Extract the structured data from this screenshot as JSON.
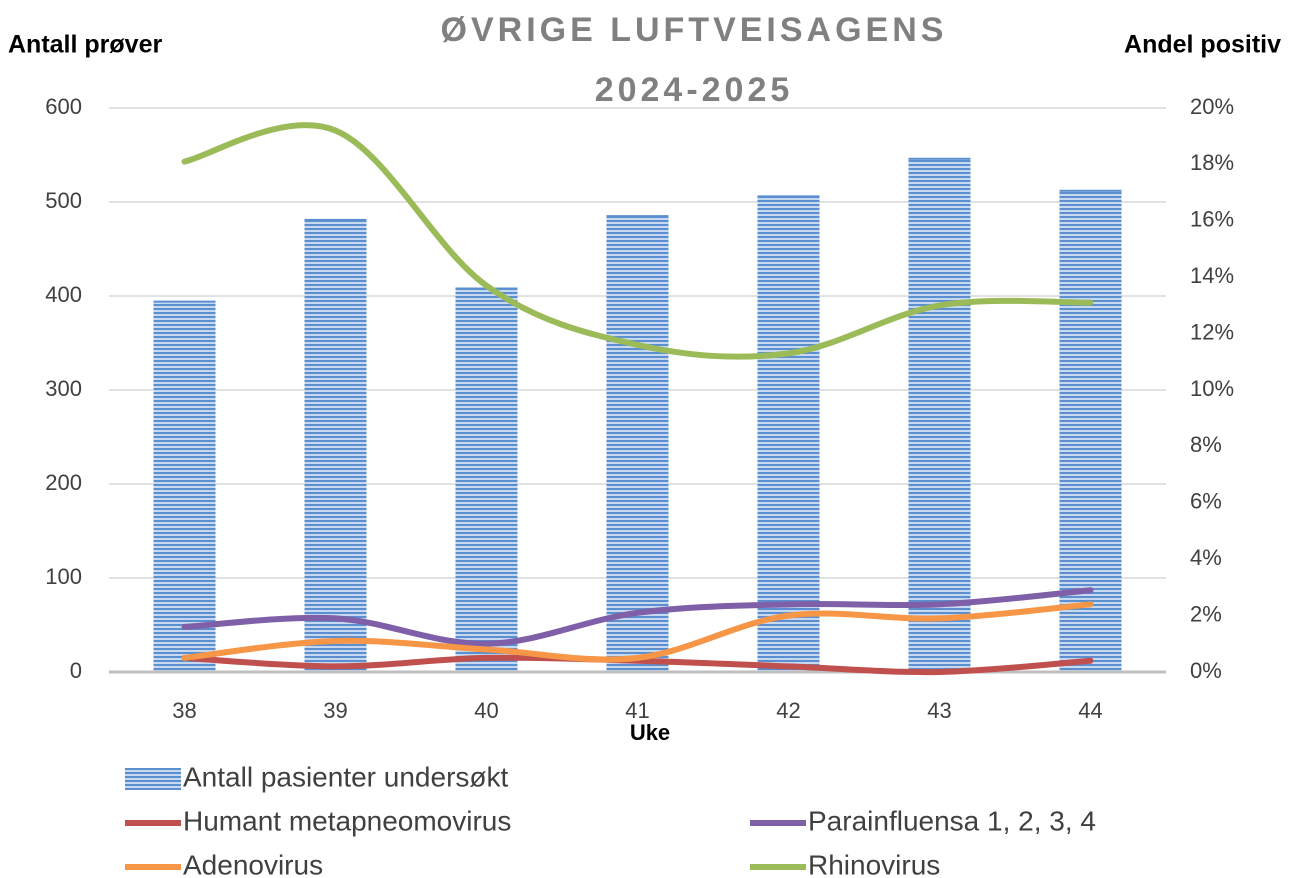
{
  "chart_data": {
    "type": "bar",
    "title": [
      "ØVRIGE LUFTVEISAGENS",
      "2024-2025"
    ],
    "y_label": "Antall prøver",
    "y2_label": "Andel positiv",
    "x_label": "Uke",
    "categories": [
      "38",
      "39",
      "40",
      "41",
      "42",
      "43",
      "44"
    ],
    "series": [
      {
        "name": "Antall pasienter undersøkt",
        "type": "bar",
        "axis": "y",
        "color": "#5b8fd0",
        "values": [
          394,
          481,
          408,
          485,
          506,
          546,
          512
        ]
      },
      {
        "name": "Parainfluensa 1, 2, 3, 4",
        "type": "line",
        "axis": "y2",
        "color": "#7f5fa8",
        "values": [
          1.6,
          1.9,
          1.0,
          2.1,
          2.4,
          2.4,
          2.9
        ]
      },
      {
        "name": "Humant metapneomovirus",
        "type": "line",
        "axis": "y2",
        "color": "#c0504d",
        "values": [
          0.5,
          0.2,
          0.5,
          0.4,
          0.2,
          0.0,
          0.4
        ]
      },
      {
        "name": "Rhinovirus",
        "type": "line",
        "axis": "y2",
        "color": "#9bbb59",
        "values": [
          18.1,
          19.2,
          13.7,
          11.6,
          11.3,
          13.0,
          13.1
        ]
      },
      {
        "name": "Adenovirus",
        "type": "line",
        "axis": "y2",
        "color": "#f79646",
        "values": [
          0.5,
          1.1,
          0.8,
          0.5,
          2.0,
          1.9,
          2.4
        ]
      }
    ],
    "ylim": [
      0,
      600
    ],
    "yticks": [
      0,
      100,
      200,
      300,
      400,
      500,
      600
    ],
    "y2lim": [
      0,
      20
    ],
    "y2ticks": [
      {
        "value": 0,
        "label": "0%"
      },
      {
        "value": 2,
        "label": "2%"
      },
      {
        "value": 4,
        "label": "4%"
      },
      {
        "value": 6,
        "label": "6%"
      },
      {
        "value": 8,
        "label": "8%"
      },
      {
        "value": 10,
        "label": "10%"
      },
      {
        "value": 12,
        "label": "12%"
      },
      {
        "value": 14,
        "label": "14%"
      },
      {
        "value": 16,
        "label": "16%"
      },
      {
        "value": 18,
        "label": "18%"
      },
      {
        "value": 20,
        "label": "20%"
      }
    ],
    "grid": true,
    "legend": "bottom"
  }
}
